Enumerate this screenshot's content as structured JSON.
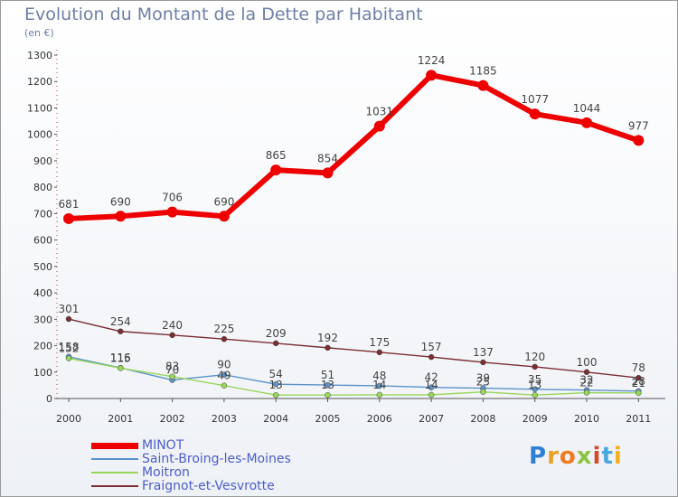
{
  "title": "Evolution du Montant de la Dette par Habitant",
  "unit_label": "(en €)",
  "brand": {
    "letters": [
      "P",
      "r",
      "o",
      "x",
      "i",
      "t",
      "i"
    ],
    "colors": [
      "#2e7fd6",
      "#e8a224",
      "#f07a1e",
      "#8cc63f",
      "#d44a2a",
      "#4aa7e0",
      "#f0b020"
    ]
  },
  "chart_data": {
    "type": "line",
    "x": [
      "2000",
      "2001",
      "2002",
      "2003",
      "2004",
      "2005",
      "2006",
      "2007",
      "2008",
      "2009",
      "2010",
      "2011"
    ],
    "ylim": [
      0,
      1300
    ],
    "yticks": [
      0,
      100,
      200,
      300,
      400,
      500,
      600,
      700,
      800,
      900,
      1000,
      1100,
      1200,
      1300
    ],
    "grid": false,
    "legend_position": "bottom-left",
    "series": [
      {
        "name": "MINOT",
        "color": "#ee0000",
        "width": 6,
        "marker": 6,
        "label_color": "#555555",
        "values": [
          681,
          690,
          706,
          690,
          865,
          854,
          1031,
          1224,
          1185,
          1077,
          1044,
          977
        ]
      },
      {
        "name": "Saint-Broing-les-Moines",
        "color": "#5b93c9",
        "width": 1.4,
        "marker": 3,
        "label_color": "#555555",
        "values": [
          158,
          116,
          70,
          90,
          54,
          51,
          48,
          42,
          39,
          35,
          32,
          28
        ]
      },
      {
        "name": "Moitron",
        "color": "#99d65a",
        "width": 1.4,
        "marker": 3,
        "label_color": "#555555",
        "values": [
          152,
          115,
          83,
          49,
          13,
          13,
          14,
          14,
          25,
          13,
          22,
          21
        ]
      },
      {
        "name": "Fraignot-et-Vesvrotte",
        "color": "#7a2e33",
        "width": 1.4,
        "marker": 3,
        "label_color": "#555555",
        "values": [
          301,
          254,
          240,
          225,
          209,
          192,
          175,
          157,
          137,
          120,
          100,
          78
        ]
      }
    ]
  }
}
